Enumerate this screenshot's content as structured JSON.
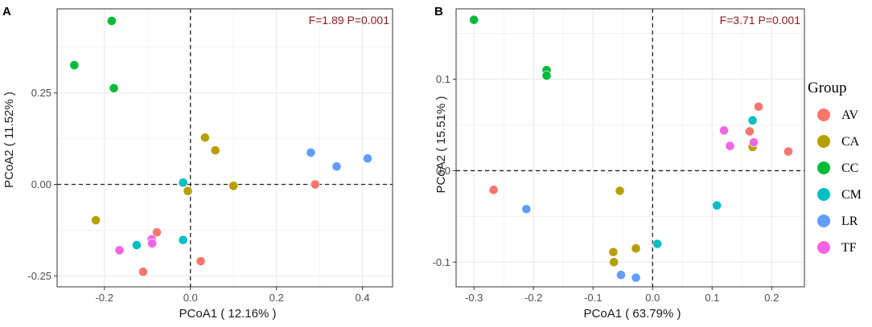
{
  "colors": {
    "AV": "#F8766D",
    "CA": "#B79F00",
    "CC": "#00BA38",
    "CM": "#00BFC4",
    "LR": "#619CFF",
    "TF": "#F564E3",
    "stat_text": "#8B1A1A",
    "grid": "#EBEBEB",
    "panel_border": "#333333"
  },
  "legend": {
    "title": "Group",
    "items": [
      {
        "key": "AV",
        "label": "AV",
        "icon": "circle-marker"
      },
      {
        "key": "CA",
        "label": "CA",
        "icon": "circle-marker"
      },
      {
        "key": "CC",
        "label": "CC",
        "icon": "circle-marker"
      },
      {
        "key": "CM",
        "label": "CM",
        "icon": "circle-marker"
      },
      {
        "key": "LR",
        "label": "LR",
        "icon": "circle-marker"
      },
      {
        "key": "TF",
        "label": "TF",
        "icon": "circle-marker"
      }
    ]
  },
  "chart_data": [
    {
      "type": "scatter",
      "panel_label": "A",
      "annotation": "F=1.89  P=0.001",
      "xlabel": "PCoA1 ( 12.16% )",
      "ylabel": "PCoA2 ( 11.52% )",
      "xlim": [
        -0.31,
        0.47
      ],
      "ylim": [
        -0.28,
        0.48
      ],
      "xticks": [
        -0.2,
        0.0,
        0.2,
        0.4
      ],
      "xtick_labels": [
        "-0.2",
        "0.0",
        "0.2",
        "0.4"
      ],
      "yticks": [
        -0.25,
        0.0,
        0.25
      ],
      "ytick_labels": [
        "-0.25",
        "0.00",
        "0.25"
      ],
      "reference_lines": {
        "x": 0,
        "y": 0
      },
      "series": [
        {
          "name": "AV",
          "points": [
            [
              0.29,
              0.0
            ],
            [
              -0.078,
              -0.131
            ],
            [
              0.024,
              -0.21
            ],
            [
              -0.11,
              -0.239
            ]
          ]
        },
        {
          "name": "CA",
          "points": [
            [
              0.034,
              0.128
            ],
            [
              0.058,
              0.093
            ],
            [
              -0.006,
              -0.018
            ],
            [
              0.1,
              -0.004
            ],
            [
              -0.22,
              -0.098
            ]
          ]
        },
        {
          "name": "CC",
          "points": [
            [
              -0.183,
              0.447
            ],
            [
              -0.27,
              0.326
            ],
            [
              -0.178,
              0.263
            ]
          ]
        },
        {
          "name": "CM",
          "points": [
            [
              -0.017,
              0.005
            ],
            [
              -0.017,
              -0.152
            ],
            [
              -0.125,
              -0.166
            ]
          ]
        },
        {
          "name": "LR",
          "points": [
            [
              0.28,
              0.087
            ],
            [
              0.34,
              0.049
            ],
            [
              0.412,
              0.071
            ]
          ]
        },
        {
          "name": "TF",
          "points": [
            [
              -0.09,
              -0.15
            ],
            [
              -0.089,
              -0.161
            ],
            [
              -0.165,
              -0.18
            ]
          ]
        }
      ]
    },
    {
      "type": "scatter",
      "panel_label": "B",
      "annotation": "F=3.71  P=0.001",
      "xlabel": "PCoA1 ( 63.79% )",
      "ylabel": "PCoA2 ( 15.51% )",
      "xlim": [
        -0.33,
        0.255
      ],
      "ylim": [
        -0.127,
        0.177
      ],
      "xticks": [
        -0.3,
        -0.2,
        -0.1,
        0.0,
        0.1,
        0.2
      ],
      "xtick_labels": [
        "-0.3",
        "-0.2",
        "-0.1",
        "0.0",
        "0.1",
        "0.2"
      ],
      "yticks": [
        -0.1,
        0.0,
        0.1
      ],
      "ytick_labels": [
        "-0.1",
        "0.0",
        "0.1"
      ],
      "reference_lines": {
        "x": 0,
        "y": 0
      },
      "series": [
        {
          "name": "AV",
          "points": [
            [
              0.178,
              0.07
            ],
            [
              0.163,
              0.043
            ],
            [
              0.228,
              0.021
            ],
            [
              -0.267,
              -0.021
            ]
          ]
        },
        {
          "name": "CA",
          "points": [
            [
              0.168,
              0.026
            ],
            [
              -0.055,
              -0.022
            ],
            [
              -0.066,
              -0.089
            ],
            [
              -0.028,
              -0.085
            ],
            [
              -0.065,
              -0.1
            ]
          ]
        },
        {
          "name": "CC",
          "points": [
            [
              -0.3,
              0.165
            ],
            [
              -0.178,
              0.11
            ],
            [
              -0.178,
              0.104
            ]
          ]
        },
        {
          "name": "CM",
          "points": [
            [
              0.168,
              0.055
            ],
            [
              0.108,
              -0.038
            ],
            [
              0.008,
              -0.08
            ]
          ]
        },
        {
          "name": "LR",
          "points": [
            [
              -0.212,
              -0.042
            ],
            [
              -0.053,
              -0.114
            ],
            [
              -0.028,
              -0.117
            ]
          ]
        },
        {
          "name": "TF",
          "points": [
            [
              0.12,
              0.044
            ],
            [
              0.13,
              0.027
            ],
            [
              0.17,
              0.031
            ]
          ]
        }
      ]
    }
  ]
}
